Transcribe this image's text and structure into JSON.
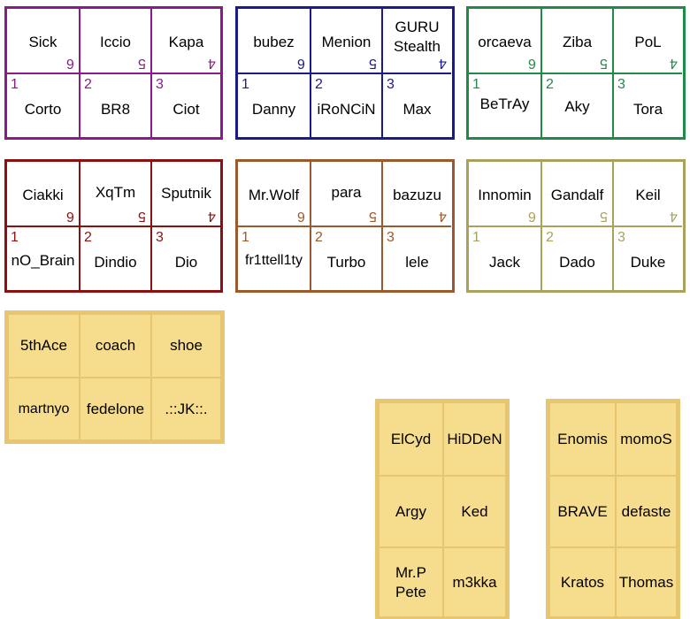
{
  "teams": [
    {
      "top": [
        "Sick",
        "Iccio",
        "Kapa"
      ],
      "top_nums": [
        "6",
        "5",
        "4"
      ],
      "bottom": [
        "Corto",
        "BR8",
        "Ciot"
      ],
      "bottom_nums": [
        "1",
        "2",
        "3"
      ],
      "color": "#8b1a8b"
    },
    {
      "top": [
        "bubez",
        "Menion",
        "GURU\nStealth"
      ],
      "top_nums": [
        "6",
        "5",
        "4"
      ],
      "bottom": [
        "Danny",
        "iRoNCiN",
        "Max"
      ],
      "bottom_nums": [
        "1",
        "2",
        "3"
      ],
      "color": "#1a1a8b"
    },
    {
      "top": [
        "orcaeva",
        "Ziba",
        "PoL"
      ],
      "top_nums": [
        "6",
        "5",
        "4"
      ],
      "bottom": [
        "BeTrAy",
        "Aky",
        "Tora"
      ],
      "bottom_nums": [
        "1",
        "2",
        "3"
      ],
      "color": "#1f8b45"
    },
    {
      "top": [
        "Ciakki",
        "XqTm",
        "Sputnik"
      ],
      "top_nums": [
        "6",
        "5",
        "4"
      ],
      "bottom": [
        "nO_Brain",
        "Dindio",
        "Dio"
      ],
      "bottom_nums": [
        "1",
        "2",
        "3"
      ],
      "color": "#8b1111"
    },
    {
      "top": [
        "Mr.Wolf",
        "para",
        "bazuzu"
      ],
      "top_nums": [
        "6",
        "5",
        "4"
      ],
      "bottom": [
        "fr1ttell1ty",
        "Turbo",
        "lele"
      ],
      "bottom_nums": [
        "1",
        "2",
        "3"
      ],
      "color": "#9b5a2e"
    },
    {
      "top": [
        "Innomin",
        "Gandalf",
        "Keil"
      ],
      "top_nums": [
        "6",
        "5",
        "4"
      ],
      "bottom": [
        "Jack",
        "Dado",
        "Duke"
      ],
      "bottom_nums": [
        "1",
        "2",
        "3"
      ],
      "color": "#a9a25c"
    }
  ],
  "reserves": {
    "group1": [
      "5thAce",
      "coach",
      "shoe",
      "martnyo",
      "fedelone",
      ".::JK::."
    ],
    "group2": [
      "ElCyd",
      "HiDDeN",
      "Argy",
      "Ked",
      "Mr.P\nPete",
      "m3kka"
    ],
    "group3": [
      "Enomis",
      "momoS",
      "BRAVE",
      "defaste",
      "Kratos",
      "Thomas"
    ]
  },
  "colors": {
    "fill": "#f6dd8e",
    "border": "#e8c66f"
  }
}
